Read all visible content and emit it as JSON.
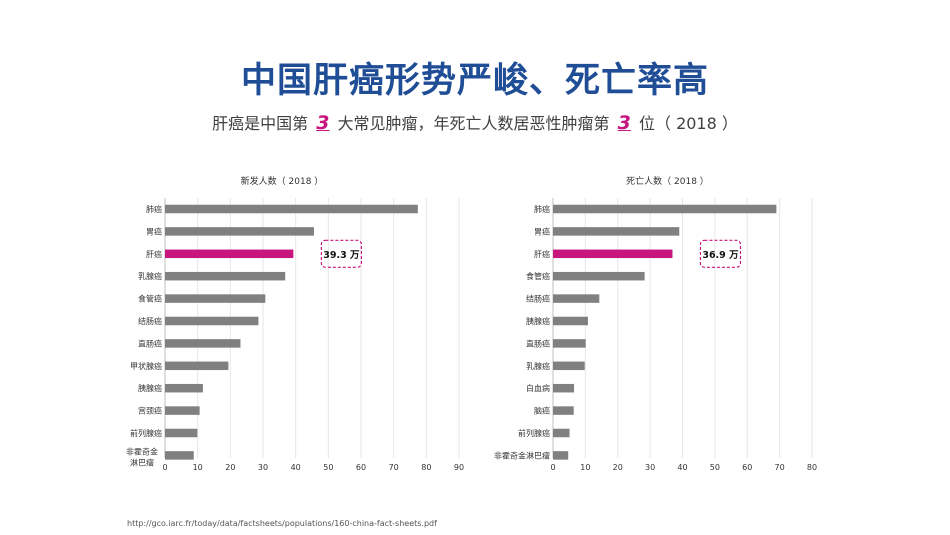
{
  "title": "中国肝癌形势严峻、死亡率高",
  "subtitle": {
    "part1": "肝癌是中国第",
    "rank1": "3",
    "part2": "大常见肿瘤，年死亡人数居恶性肿瘤第",
    "rank2": "3",
    "part3": "位（  2018  ）"
  },
  "colors": {
    "title": "#1f4e96",
    "highlight": "#c8167f",
    "bar": "#808080"
  },
  "chart_data": [
    {
      "type": "bar",
      "orientation": "horizontal",
      "title": "新发人数（  2018  ）",
      "categories": [
        "肺癌",
        "胃癌",
        "肝癌",
        "乳腺癌",
        "食管癌",
        "结肠癌",
        "直肠癌",
        "甲状腺癌",
        "胰腺癌",
        "宫颈癌",
        "前列腺癌",
        "非霍奇金淋巴瘤"
      ],
      "category_lines": [
        [
          "肺癌"
        ],
        [
          "胃癌"
        ],
        [
          "肝癌"
        ],
        [
          "乳腺癌"
        ],
        [
          "食管癌"
        ],
        [
          "结肠癌"
        ],
        [
          "直肠癌"
        ],
        [
          "甲状腺癌"
        ],
        [
          "胰腺癌"
        ],
        [
          "宫颈癌"
        ],
        [
          "前列腺癌"
        ],
        [
          "非霍奇金",
          "淋巴瘤"
        ]
      ],
      "values": [
        77.4,
        45.6,
        39.3,
        36.8,
        30.7,
        28.6,
        23.1,
        19.4,
        11.6,
        10.6,
        9.9,
        8.8
      ],
      "xlim": [
        0,
        90
      ],
      "xticks": [
        0,
        10,
        20,
        30,
        40,
        50,
        60,
        70,
        80,
        90
      ],
      "highlight_index": 2,
      "annotation": "39.3 万"
    },
    {
      "type": "bar",
      "orientation": "horizontal",
      "title": "死亡人数（  2018  ）",
      "categories": [
        "肺癌",
        "胃癌",
        "肝癌",
        "食管癌",
        "结肠癌",
        "胰腺癌",
        "直肠癌",
        "乳腺癌",
        "白血病",
        "脑癌",
        "前列腺癌",
        "非霍奇金淋巴瘤"
      ],
      "category_lines": [
        [
          "肺癌"
        ],
        [
          "胃癌"
        ],
        [
          "肝癌"
        ],
        [
          "食管癌"
        ],
        [
          "结肠癌"
        ],
        [
          "胰腺癌"
        ],
        [
          "直肠癌"
        ],
        [
          "乳腺癌"
        ],
        [
          "白血病"
        ],
        [
          "脑癌"
        ],
        [
          "前列腺癌"
        ],
        [
          "非霍奇金淋巴瘤"
        ]
      ],
      "values": [
        69.0,
        39.0,
        36.9,
        28.3,
        14.3,
        10.8,
        10.1,
        9.8,
        6.5,
        6.4,
        5.1,
        4.7
      ],
      "xlim": [
        0,
        80
      ],
      "xticks": [
        0,
        10,
        20,
        30,
        40,
        50,
        60,
        70,
        80
      ],
      "highlight_index": 2,
      "annotation": "36.9 万"
    }
  ],
  "source": "http://gco.iarc.fr/today/data/factsheets/populations/160-china-fact-sheets.pdf"
}
